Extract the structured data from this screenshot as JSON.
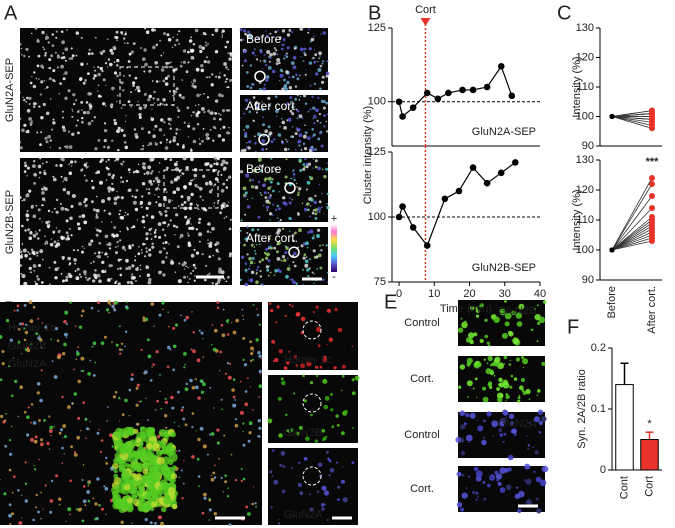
{
  "panels": {
    "A": {
      "letter": "A",
      "rows": [
        "GluN2A-SEP",
        "GluN2B-SEP"
      ],
      "insets": [
        "Before",
        "After cort.",
        "Before",
        "After cort."
      ],
      "colorbar": [
        "+",
        "-"
      ]
    },
    "B": {
      "letter": "B"
    },
    "C": {
      "letter": "C"
    },
    "D": {
      "letter": "D",
      "legend": [
        "Homer 1c",
        "GluN2B",
        "GluN2A"
      ],
      "insets": [
        "Homer 1c",
        "GluN2B",
        "GluN2A"
      ]
    },
    "E": {
      "letter": "E",
      "rows": [
        "Control",
        "Cort.",
        "Control",
        "Cort."
      ],
      "insets": [
        "GluN2B",
        "GluN2A"
      ]
    },
    "F": {
      "letter": "F"
    }
  },
  "chart_data": [
    {
      "type": "line",
      "x": [
        0,
        1,
        4,
        8,
        11,
        14,
        18,
        21,
        25,
        29,
        32
      ],
      "values": [
        100,
        95,
        98,
        103,
        101,
        103,
        104,
        104,
        105,
        112,
        102
      ],
      "color": "#000000",
      "xlim": [
        -2,
        40
      ],
      "ylim": [
        85,
        125
      ],
      "yticks": [
        100,
        125
      ],
      "reference": 100,
      "annotation": "GluN2A-SEP",
      "marker_x": 7.5,
      "marker_label": "Cort",
      "marker_color": "#e8322a",
      "ylabel": "Cluster intensity (%)"
    },
    {
      "type": "line",
      "x": [
        0,
        1,
        4,
        8,
        13,
        17,
        21,
        25,
        29,
        33
      ],
      "values": [
        100,
        104,
        96,
        89,
        107,
        110,
        119,
        113,
        117,
        121
      ],
      "color": "#000000",
      "xlim": [
        -2,
        40
      ],
      "ylim": [
        75,
        125
      ],
      "yticks": [
        75,
        100,
        125
      ],
      "xticks": [
        0,
        10,
        20,
        30,
        40
      ],
      "reference": 100,
      "annotation": "GluN2B-SEP",
      "marker_x": 7.5,
      "marker_color": "#e8322a",
      "xlabel": "Time (min)"
    },
    {
      "type": "paired",
      "before": [
        100,
        100,
        100,
        100,
        100,
        100,
        100,
        100,
        100,
        100,
        100,
        100
      ],
      "after": [
        96,
        97,
        98,
        99,
        99,
        100,
        100,
        101,
        101,
        102,
        102,
        101
      ],
      "color": "#e8322a",
      "ylim": [
        90,
        130
      ],
      "yticks": [
        90,
        100,
        110,
        120,
        130
      ],
      "ylabel": "Intensity (%)"
    },
    {
      "type": "paired",
      "before": [
        100,
        100,
        100,
        100,
        100,
        100,
        100,
        100,
        100,
        100,
        100,
        100,
        100
      ],
      "after": [
        103,
        104,
        105,
        106,
        107,
        108,
        109,
        110,
        111,
        114,
        118,
        122,
        124
      ],
      "color": "#e8322a",
      "ylim": [
        90,
        130
      ],
      "yticks": [
        90,
        100,
        110,
        120,
        130
      ],
      "ylabel": "Intensity (%)",
      "annotation": "***",
      "categories": [
        "Before",
        "After cort."
      ]
    },
    {
      "type": "bar",
      "categories": [
        "Cont",
        "Cort"
      ],
      "values": [
        0.14,
        0.05
      ],
      "errors": [
        0.035,
        0.012
      ],
      "colors": [
        "#ffffff",
        "#e8322a"
      ],
      "ylim": [
        0,
        0.2
      ],
      "yticks": [
        0,
        0.1,
        0.2
      ],
      "ylabel": "Syn. 2A/2B ratio",
      "annotation": "*",
      "annotation_color": "#e8322a"
    }
  ]
}
